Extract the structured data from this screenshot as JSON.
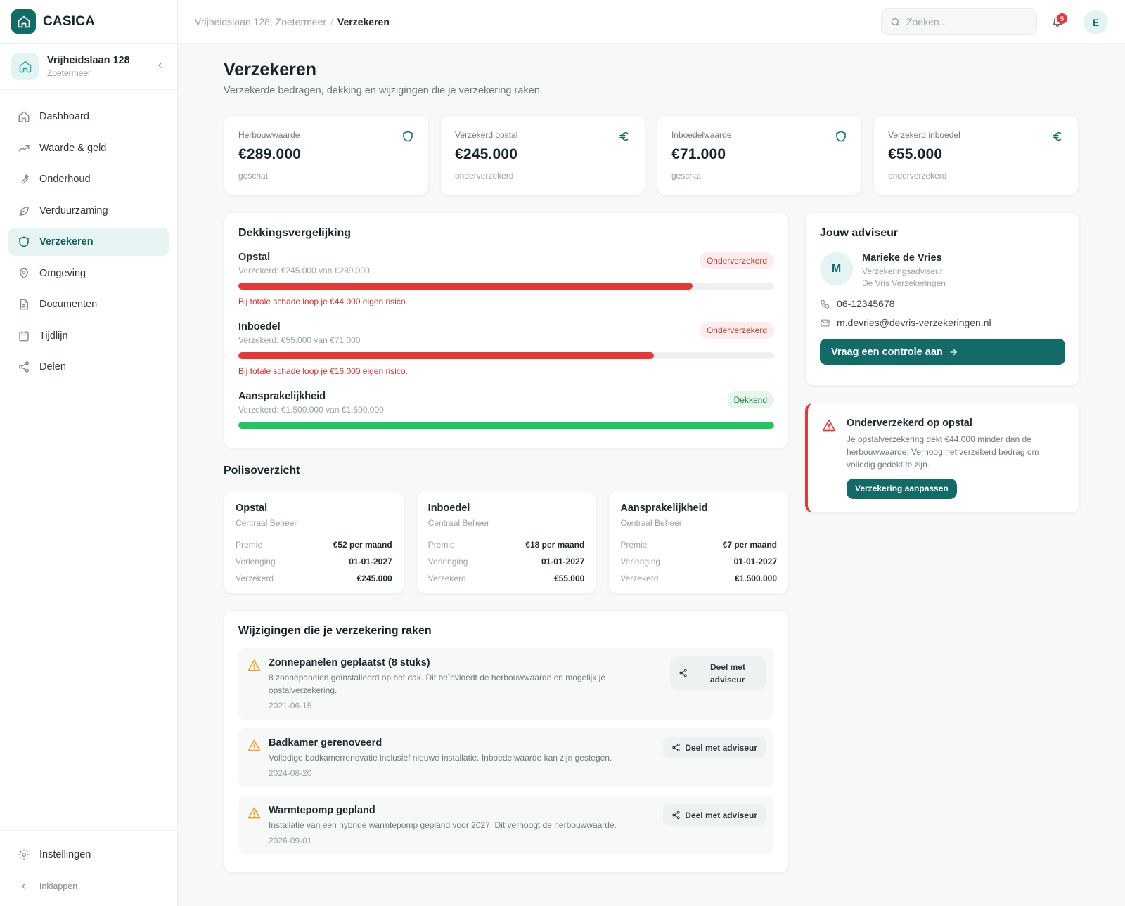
{
  "brand": {
    "name": "CASICA"
  },
  "property": {
    "street": "Vrijheidslaan 128",
    "city": "Zoetermeer"
  },
  "nav": [
    {
      "id": "dashboard",
      "label": "Dashboard",
      "icon": "home-icon"
    },
    {
      "id": "waarde",
      "label": "Waarde & geld",
      "icon": "trend-up-icon"
    },
    {
      "id": "onderhoud",
      "label": "Onderhoud",
      "icon": "wrench-icon"
    },
    {
      "id": "verduurzaming",
      "label": "Verduurzaming",
      "icon": "leaf-icon"
    },
    {
      "id": "verzekeren",
      "label": "Verzekeren",
      "icon": "shield-icon",
      "active": true
    },
    {
      "id": "omgeving",
      "label": "Omgeving",
      "icon": "map-pin-icon"
    },
    {
      "id": "documenten",
      "label": "Documenten",
      "icon": "document-icon"
    },
    {
      "id": "tijdlijn",
      "label": "Tijdlijn",
      "icon": "calendar-icon"
    },
    {
      "id": "delen",
      "label": "Delen",
      "icon": "share-icon"
    }
  ],
  "sidebar_bottom": {
    "settings": "Instellingen",
    "collapse": "Inklappen"
  },
  "topbar": {
    "breadcrumb": [
      "Vrijheidslaan 128, Zoetermeer",
      "Verzekeren"
    ],
    "breadcrumb_sep": "/",
    "search_placeholder": "Zoeken...",
    "notification_count": "5",
    "user_initial": "E"
  },
  "page": {
    "title": "Verzekeren",
    "subtitle": "Verzekerde bedragen, dekking en wijzigingen die je verzekering raken."
  },
  "stats": [
    {
      "label": "Herbouwwaarde",
      "value": "€289.000",
      "note": "geschat",
      "icon": "shield-icon"
    },
    {
      "label": "Verzekerd opstal",
      "value": "€245.000",
      "note": "onderverzekerd",
      "icon": "euro-icon"
    },
    {
      "label": "Inboedelwaarde",
      "value": "€71.000",
      "note": "geschat",
      "icon": "shield-icon"
    },
    {
      "label": "Verzekerd inboedel",
      "value": "€55.000",
      "note": "onderverzekerd",
      "icon": "euro-icon"
    }
  ],
  "coverage": {
    "title": "Dekkingsvergelijking",
    "items": [
      {
        "name": "Opstal",
        "sub": "Verzekerd: €245.000 van €289.000",
        "status": "Onderverzekerd",
        "status_type": "red",
        "fraction": 0.848,
        "warning": "Bij totale schade loop je €44.000 eigen risico."
      },
      {
        "name": "Inboedel",
        "sub": "Verzekerd: €55.000 van €71.000",
        "status": "Onderverzekerd",
        "status_type": "red",
        "fraction": 0.775,
        "warning": "Bij totale schade loop je €16.000 eigen risico."
      },
      {
        "name": "Aansprakelijkheid",
        "sub": "Verzekerd: €1.500.000 van €1.500.000",
        "status": "Dekkend",
        "status_type": "green",
        "fraction": 1.0,
        "warning": ""
      }
    ]
  },
  "advisor": {
    "title": "Jouw adviseur",
    "initial": "M",
    "name": "Marieke de Vries",
    "role": "Verzekeringsadviseur",
    "company": "De Vris Verzekeringen",
    "phone": "06-12345678",
    "email": "m.devries@devris-verzekeringen.nl",
    "cta": "Vraag een controle aan"
  },
  "alert": {
    "title": "Onderverzekerd op opstal",
    "body": "Je opstalverzekering dekt €44.000 minder dan de herbouwwaarde. Verhoog het verzekerd bedrag om volledig gedekt te zijn.",
    "cta": "Verzekering aanpassen"
  },
  "policies": {
    "title": "Polisoverzicht",
    "labels": {
      "premium": "Premie",
      "renewal": "Verlenging",
      "insured": "Verzekerd"
    },
    "items": [
      {
        "name": "Opstal",
        "insurer": "Centraal Beheer",
        "premium": "€52 per maand",
        "renewal": "01-01-2027",
        "insured": "€245.000"
      },
      {
        "name": "Inboedel",
        "insurer": "Centraal Beheer",
        "premium": "€18 per maand",
        "renewal": "01-01-2027",
        "insured": "€55.000"
      },
      {
        "name": "Aansprakelijkheid",
        "insurer": "Centraal Beheer",
        "premium": "€7 per maand",
        "renewal": "01-01-2027",
        "insured": "€1.500.000"
      }
    ]
  },
  "changes": {
    "title": "Wijzigingen die je verzekering raken",
    "share_label": "Deel met adviseur",
    "items": [
      {
        "title": "Zonnepanelen geplaatst (8 stuks)",
        "desc": "8 zonnepanelen geïnstalleerd op het dak. Dit beïnvloedt de herbouwwaarde en mogelijk je opstalverzekering.",
        "date": "2021-06-15"
      },
      {
        "title": "Badkamer gerenoveerd",
        "desc": "Volledige badkamerrenovatie inclusief nieuwe installatie. Inboedelwaarde kan zijn gestegen.",
        "date": "2024-08-20"
      },
      {
        "title": "Warmtepomp gepland",
        "desc": "Installatie van een hybride warmtepomp gepland voor 2027. Dit verhoogt de herbouwwaarde.",
        "date": "2026-09-01"
      }
    ]
  },
  "colors": {
    "brand": "#126b66",
    "danger": "#e53935",
    "success": "#22c55e",
    "warning": "#f0a020"
  }
}
